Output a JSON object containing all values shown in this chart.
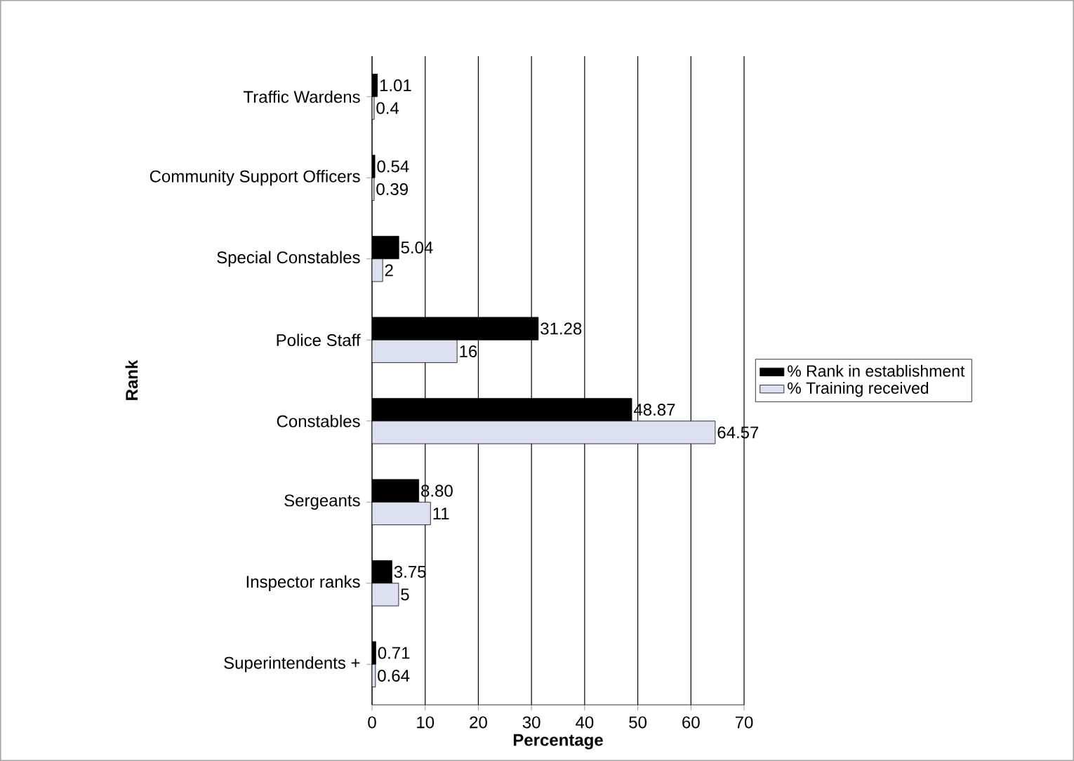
{
  "chart_data": {
    "type": "bar",
    "orientation": "horizontal",
    "xlabel": "Percentage",
    "ylabel": "Rank",
    "categories": [
      "Traffic Wardens",
      "Community Support Officers",
      "Special Constables",
      "Police Staff",
      "Constables",
      "Sergeants",
      "Inspector ranks",
      "Superintendents +"
    ],
    "series": [
      {
        "name": "% Rank in establishment",
        "color": "#000000",
        "values": [
          1.01,
          0.54,
          5.04,
          31.28,
          48.87,
          8.8,
          3.75,
          0.71
        ],
        "value_labels": [
          "1.01",
          "0.54",
          "5.04",
          "31.28",
          "48.87",
          "8.80",
          "3.75",
          "0.71"
        ]
      },
      {
        "name": "% Training received",
        "color": "#dde0f0",
        "values": [
          0.4,
          0.39,
          2,
          16,
          64.57,
          11,
          5,
          0.64
        ],
        "value_labels": [
          "0.4",
          "0.39",
          "2",
          "16",
          "64.57",
          "11",
          "5",
          "0.64"
        ]
      }
    ],
    "xlim": [
      0,
      70
    ],
    "xticks": [
      0,
      10,
      20,
      30,
      40,
      50,
      60,
      70
    ],
    "grid": "x",
    "legend": "right"
  }
}
